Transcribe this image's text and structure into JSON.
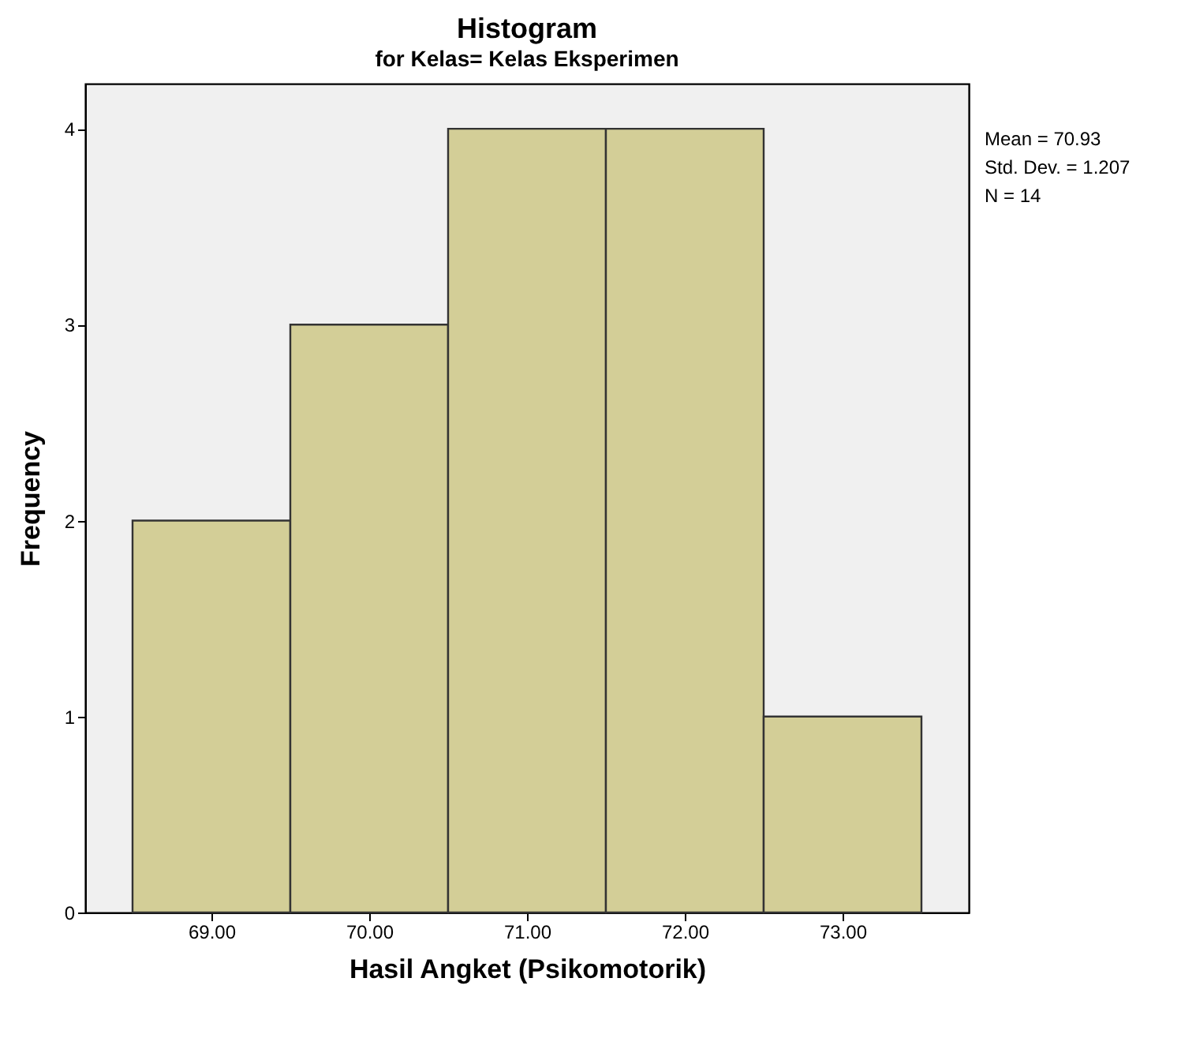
{
  "chart_data": {
    "type": "histogram",
    "title": "Histogram",
    "subtitle": "for Kelas= Kelas Eksperimen",
    "xlabel": "Hasil Angket (Psikomotorik)",
    "ylabel": "Frequency",
    "bins": [
      68.5,
      69.5,
      70.5,
      71.5,
      72.5,
      73.5
    ],
    "values": [
      2,
      3,
      4,
      4,
      1
    ],
    "color": "#d3ce97",
    "xlim": [
      68.2,
      73.8
    ],
    "xticks": [
      {
        "value": 69,
        "label": "69.00"
      },
      {
        "value": 70,
        "label": "70.00"
      },
      {
        "value": 71,
        "label": "71.00"
      },
      {
        "value": 72,
        "label": "72.00"
      },
      {
        "value": 73,
        "label": "73.00"
      }
    ],
    "ylim": [
      0,
      4.23
    ],
    "yticks": [
      0,
      1,
      2,
      3,
      4
    ],
    "grid": false,
    "annotations": [
      "Mean = 70.93",
      "Std. Dev. = 1.207",
      "N = 14"
    ]
  }
}
